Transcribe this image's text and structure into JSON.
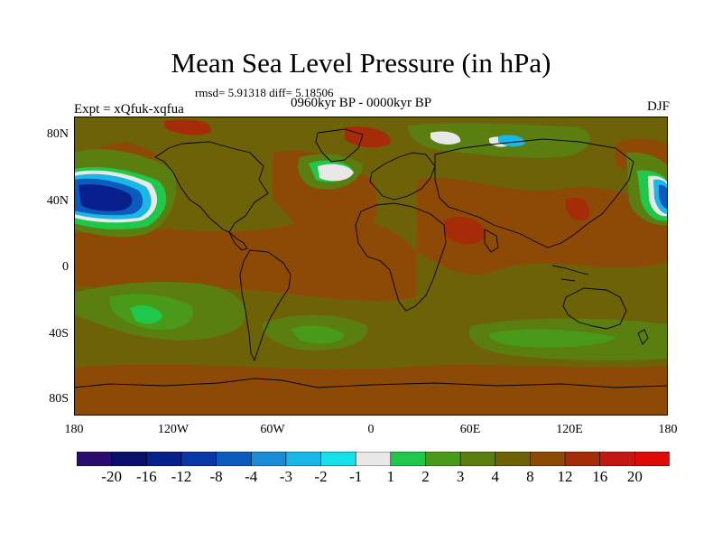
{
  "title": "Mean Sea Level Pressure (in hPa)",
  "stats": "rmsd= 5.91318  diff= 5.18506",
  "experiment": "Expt = xQfuk-xqfua",
  "period": "0960kyr BP - 0000kyr BP",
  "season": "DJF",
  "lat_ticks": [
    "80N",
    "40N",
    "0",
    "40S",
    "80S"
  ],
  "lon_ticks": [
    "180",
    "120W",
    "60W",
    "0",
    "60E",
    "120E",
    "180"
  ],
  "colorbar": {
    "labels": [
      "-20",
      "-16",
      "-12",
      "-8",
      "-4",
      "-3",
      "-2",
      "-1",
      "1",
      "2",
      "3",
      "4",
      "8",
      "12",
      "16",
      "20"
    ],
    "colors": [
      "#2a0c6e",
      "#08106a",
      "#07208c",
      "#0a36a6",
      "#0b5bbd",
      "#1a8cd6",
      "#1ab6e6",
      "#18e0e8",
      "#e8e8e8",
      "#1fc84a",
      "#4a9a1a",
      "#5a7e10",
      "#6e6208",
      "#8c4a06",
      "#a42c08",
      "#c21810",
      "#de0a0a"
    ]
  },
  "map_colors": {
    "background": "#6e6208",
    "anomaly_pos": "#8c4a06",
    "anomaly_strong": "#a42c08",
    "green_dark": "#5a7e10",
    "green_mid": "#4a9a1a",
    "green_bright": "#1fc84a",
    "neutral": "#e8e8e8",
    "blue_light": "#1ab6e6",
    "blue_mid": "#0b5bbd",
    "blue_dark": "#07208c",
    "coast": "#000000"
  }
}
